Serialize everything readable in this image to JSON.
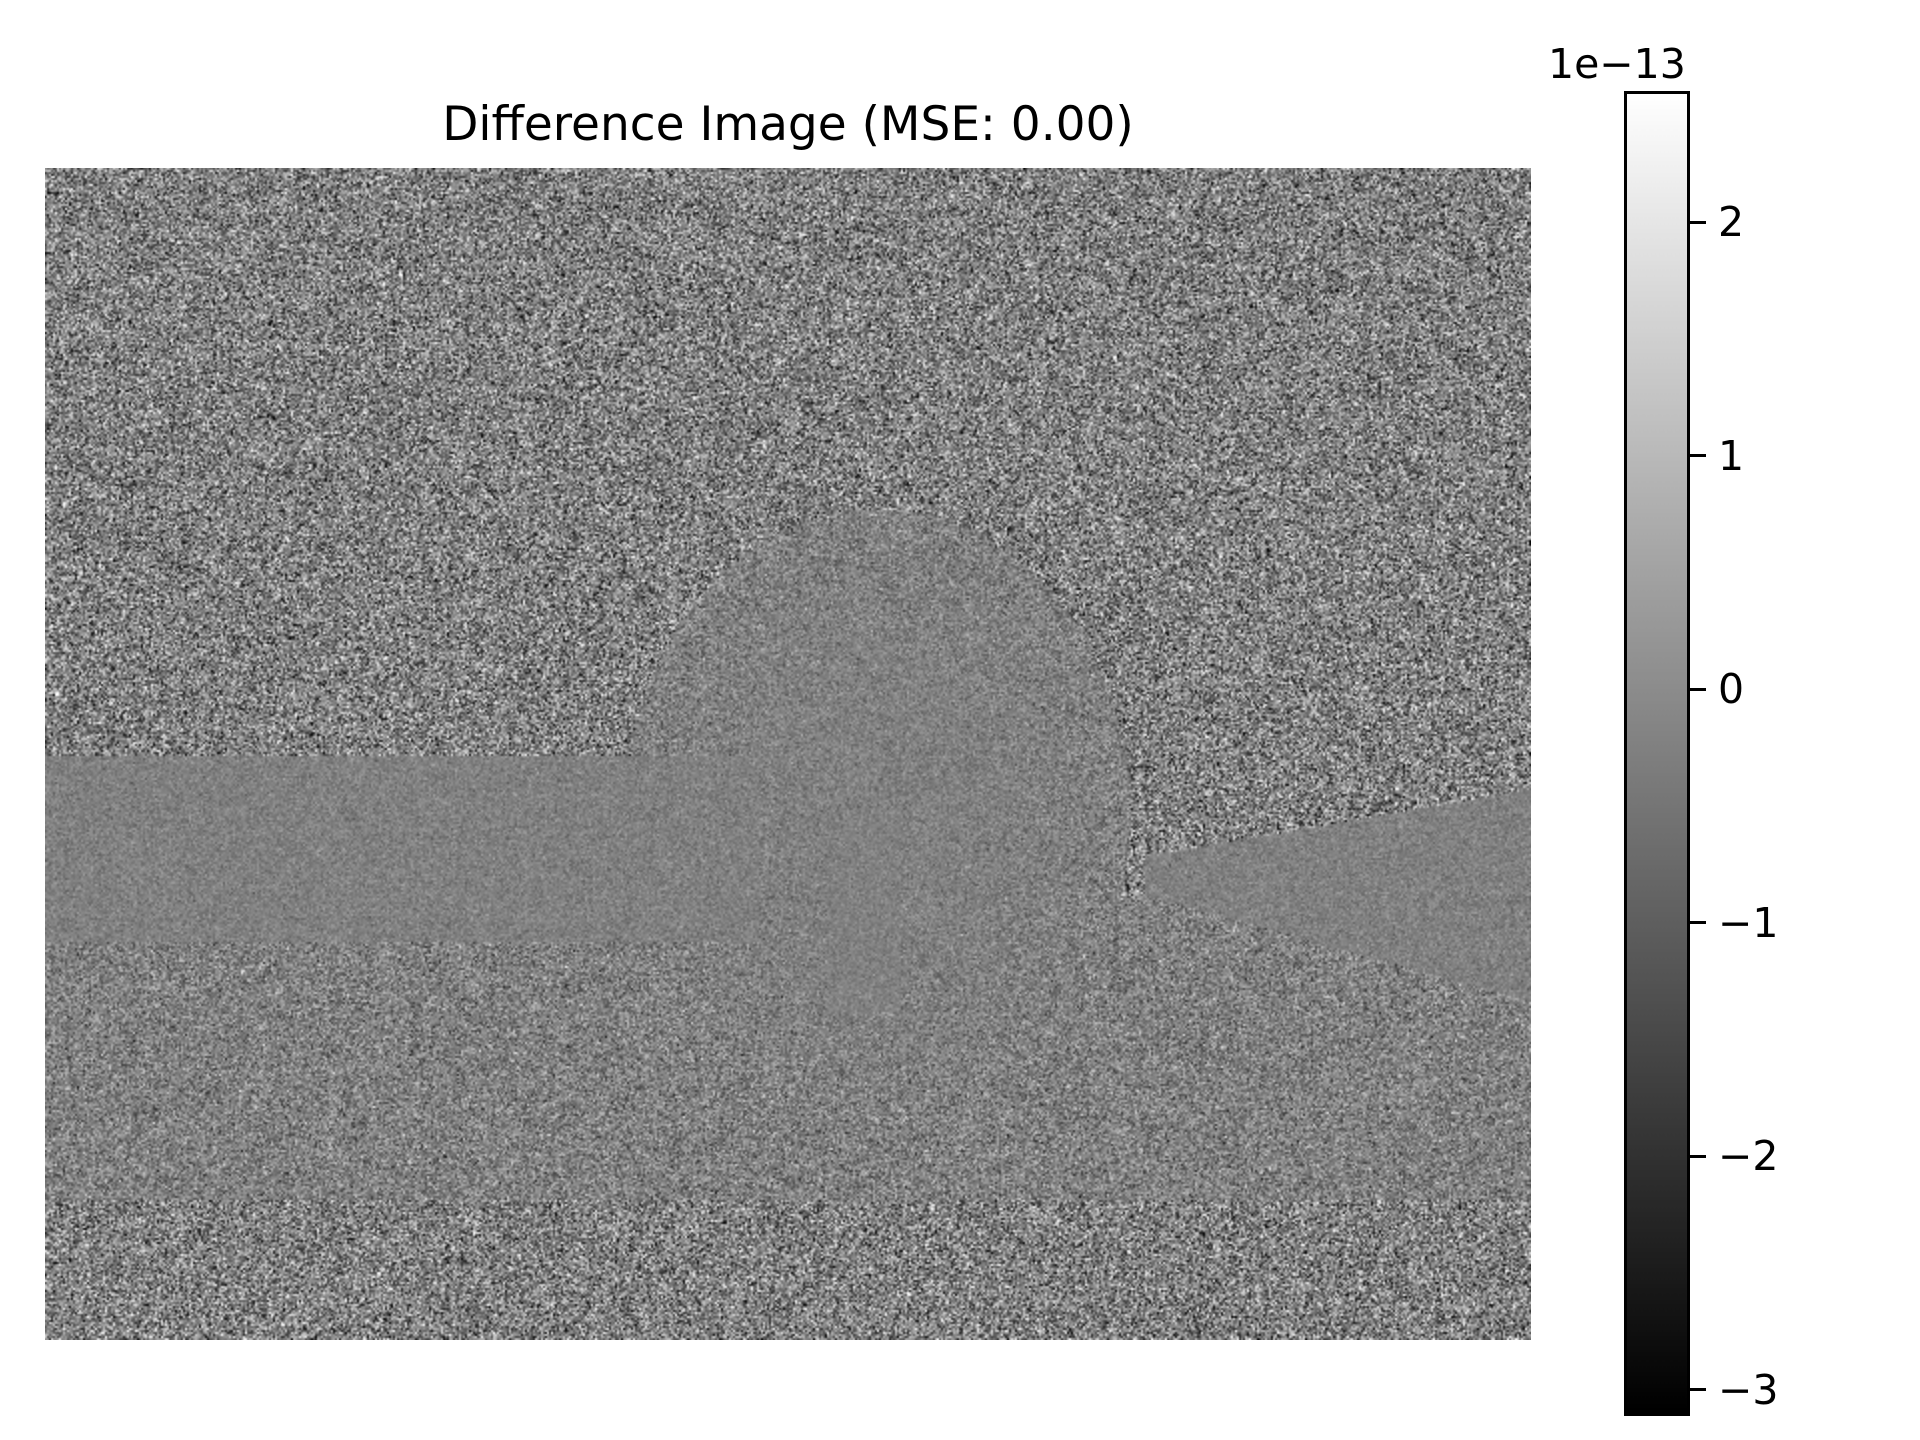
{
  "chart_data": {
    "type": "heatmap",
    "title": "Difference Image (MSE: 0.00)",
    "xlabel": "",
    "ylabel": "",
    "axis_visible": false,
    "grid": false,
    "colormap": "gray",
    "colorbar": {
      "exponent_label": "1e−13",
      "range": [
        -3.1,
        2.55
      ],
      "ticks": [
        2,
        1,
        0,
        -1,
        -2,
        -3
      ],
      "tick_labels": [
        "2",
        "1",
        "0",
        "−1",
        "−2",
        "−3"
      ],
      "scale_factor": 1e-13
    },
    "image_summary": {
      "mse": "0.00",
      "value_range": [
        -3.1e-13,
        2.55e-13
      ],
      "background": "fine-grained noise centered near 0"
    }
  },
  "colors": {
    "background": "#ffffff",
    "text": "#000000",
    "colormap_low": "#000000",
    "colormap_high": "#ffffff"
  }
}
